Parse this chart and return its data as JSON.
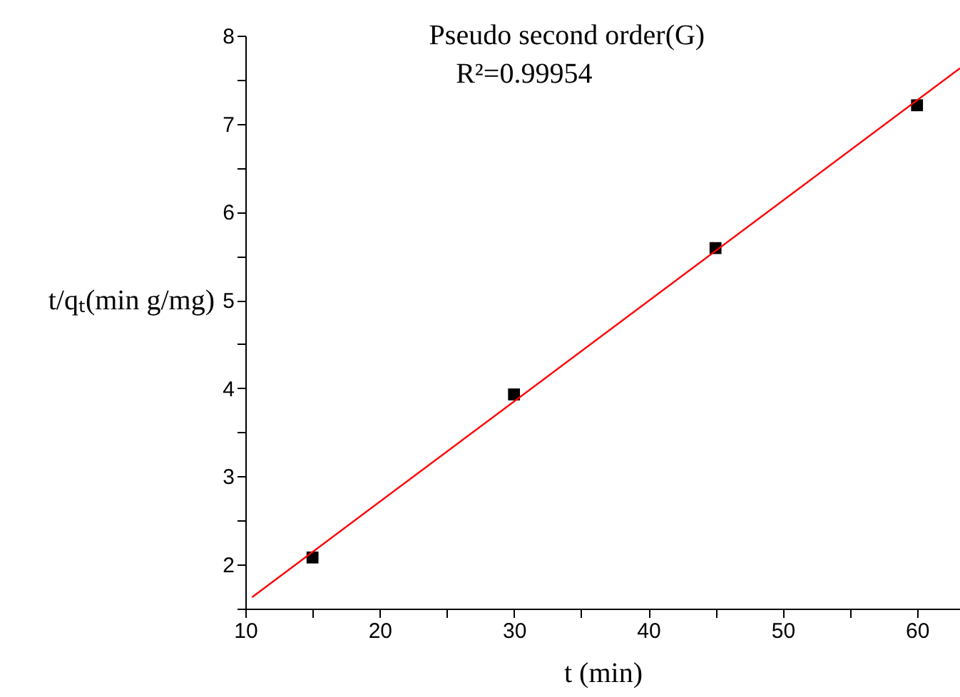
{
  "chart_data": {
    "type": "scatter",
    "title": "Pseudo second order(G)",
    "annotations": [
      "R²=0.99954"
    ],
    "xlabel": "t (min)",
    "ylabel": "t/qₜ(min g/mg)",
    "xlim": [
      10,
      63.2
    ],
    "ylim": [
      1.5,
      8
    ],
    "xticks": [
      10,
      {
        "value": 15,
        "label": null
      },
      20,
      {
        "value": 25,
        "label": null
      },
      30,
      {
        "value": 35,
        "label": null
      },
      40,
      {
        "value": 45,
        "label": null
      },
      50,
      {
        "value": 55,
        "label": null
      },
      60
    ],
    "yticks": [
      {
        "value": 1.5,
        "label": null
      },
      2,
      {
        "value": 2.5,
        "label": null
      },
      3,
      {
        "value": 3.5,
        "label": null
      },
      4,
      {
        "value": 4.5,
        "label": null
      },
      5,
      {
        "value": 5.5,
        "label": null
      },
      6,
      {
        "value": 6.5,
        "label": null
      },
      7,
      {
        "value": 7.5,
        "label": null
      },
      8
    ],
    "grid": false,
    "series": [
      {
        "type": "scatter",
        "color": "#000000",
        "marker": "square",
        "x": [
          15,
          30,
          45,
          60
        ],
        "values": [
          2.08,
          3.93,
          5.59,
          7.21
        ]
      },
      {
        "type": "line",
        "color": "#ff0000",
        "marker": "none",
        "line_style": "solid",
        "x": [
          10.5,
          63.2
        ],
        "values": [
          1.63,
          7.63
        ]
      }
    ]
  }
}
